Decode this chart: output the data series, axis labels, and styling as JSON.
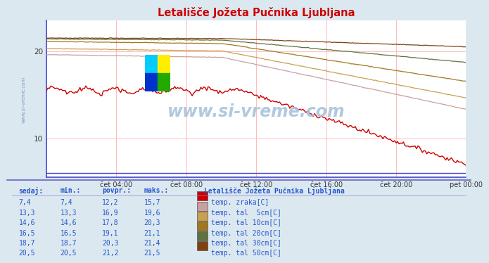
{
  "title": "Letališče Jožeta Pučnika Ljubljana",
  "background_color": "#dce8f0",
  "plot_bg_color": "#ffffff",
  "watermark": "www.si-vreme.com",
  "xlabel_ticks": [
    "čet 04:00",
    "čet 08:00",
    "čet 12:00",
    "čet 16:00",
    "čet 20:00",
    "pet 00:00"
  ],
  "ylabel_ticks": [
    10,
    20
  ],
  "ylim": [
    5.5,
    23.5
  ],
  "xlim": [
    0,
    288
  ],
  "grid_color": "#ffbbbb",
  "vgrid_color": "#ffbbbb",
  "border_color": "#6666cc",
  "series": [
    {
      "label": "temp. zraka[C]",
      "color": "#cc0000",
      "sedaj": 7.4,
      "min": 7.4,
      "povpr": 12.2,
      "maks": 15.7
    },
    {
      "label": "temp. tal  5cm[C]",
      "color": "#c8a0a0",
      "sedaj": 13.3,
      "min": 13.3,
      "povpr": 16.9,
      "maks": 19.6
    },
    {
      "label": "temp. tal 10cm[C]",
      "color": "#c8a050",
      "sedaj": 14.6,
      "min": 14.6,
      "povpr": 17.8,
      "maks": 20.3
    },
    {
      "label": "temp. tal 20cm[C]",
      "color": "#a07820",
      "sedaj": 16.5,
      "min": 16.5,
      "povpr": 19.1,
      "maks": 21.1
    },
    {
      "label": "temp. tal 30cm[C]",
      "color": "#607040",
      "sedaj": 18.7,
      "min": 18.7,
      "povpr": 20.3,
      "maks": 21.4
    },
    {
      "label": "temp. tal 50cm[C]",
      "color": "#804010",
      "sedaj": 20.5,
      "min": 20.5,
      "povpr": 21.2,
      "maks": 21.5
    }
  ],
  "table_header": [
    "sedaj:",
    "min.:",
    "povpr.:",
    "maks.:"
  ],
  "table_color": "#2255cc",
  "bottom_title": "Letališče Jožeta Pučnika Ljubljana",
  "logo_colors": [
    "#00ccff",
    "#ffee00",
    "#0033cc",
    "#22aa00"
  ]
}
